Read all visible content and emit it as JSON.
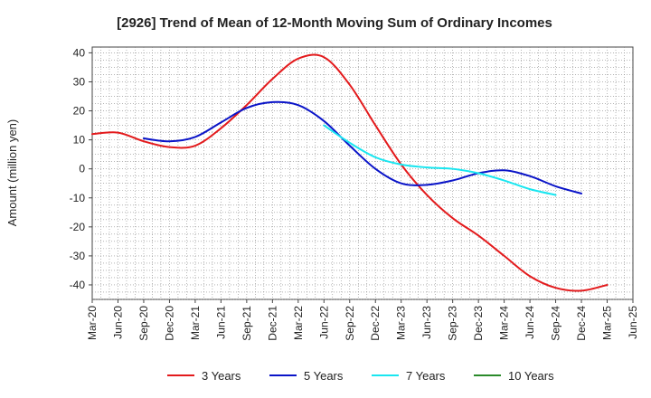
{
  "chart_data": {
    "type": "line",
    "title": "[2926]  Trend of Mean of 12-Month Moving Sum of Ordinary Incomes",
    "ylabel": "Amount (million yen)",
    "xlabel": "",
    "ylim": [
      -45,
      42
    ],
    "yticks": [
      -40,
      -30,
      -20,
      -10,
      0,
      10,
      20,
      30,
      40
    ],
    "x_tick_labels": [
      "Mar-20",
      "Jun-20",
      "Sep-20",
      "Dec-20",
      "Mar-21",
      "Jun-21",
      "Sep-21",
      "Dec-21",
      "Mar-22",
      "Jun-22",
      "Sep-22",
      "Dec-22",
      "Mar-23",
      "Jun-23",
      "Sep-23",
      "Dec-23",
      "Mar-24",
      "Jun-24",
      "Sep-24",
      "Dec-24",
      "Mar-25",
      "Jun-25"
    ],
    "grid": true,
    "series": [
      {
        "name": "3 Years",
        "color": "#e31a1c",
        "values": [
          12,
          12.5,
          9.5,
          7.5,
          8,
          14,
          22,
          31,
          38,
          38.5,
          29,
          15,
          1.5,
          -9,
          -17,
          -23,
          -30,
          -37,
          -41,
          -42,
          -40
        ]
      },
      {
        "name": "5 Years",
        "color": "#0a14c8",
        "values": [
          null,
          null,
          10.5,
          9.5,
          11,
          16,
          21,
          23,
          22,
          16.5,
          8,
          0,
          -5,
          -5.5,
          -4,
          -1.5,
          -0.5,
          -2.5,
          -6,
          -8.5,
          null
        ]
      },
      {
        "name": "7 Years",
        "color": "#19e6f0",
        "values": [
          null,
          null,
          null,
          null,
          null,
          null,
          null,
          null,
          null,
          15,
          9,
          4,
          1.5,
          0.5,
          0,
          -1.5,
          -4,
          -7,
          -9,
          null,
          null
        ]
      },
      {
        "name": "10 Years",
        "color": "#2a8a2a",
        "values": []
      }
    ]
  }
}
